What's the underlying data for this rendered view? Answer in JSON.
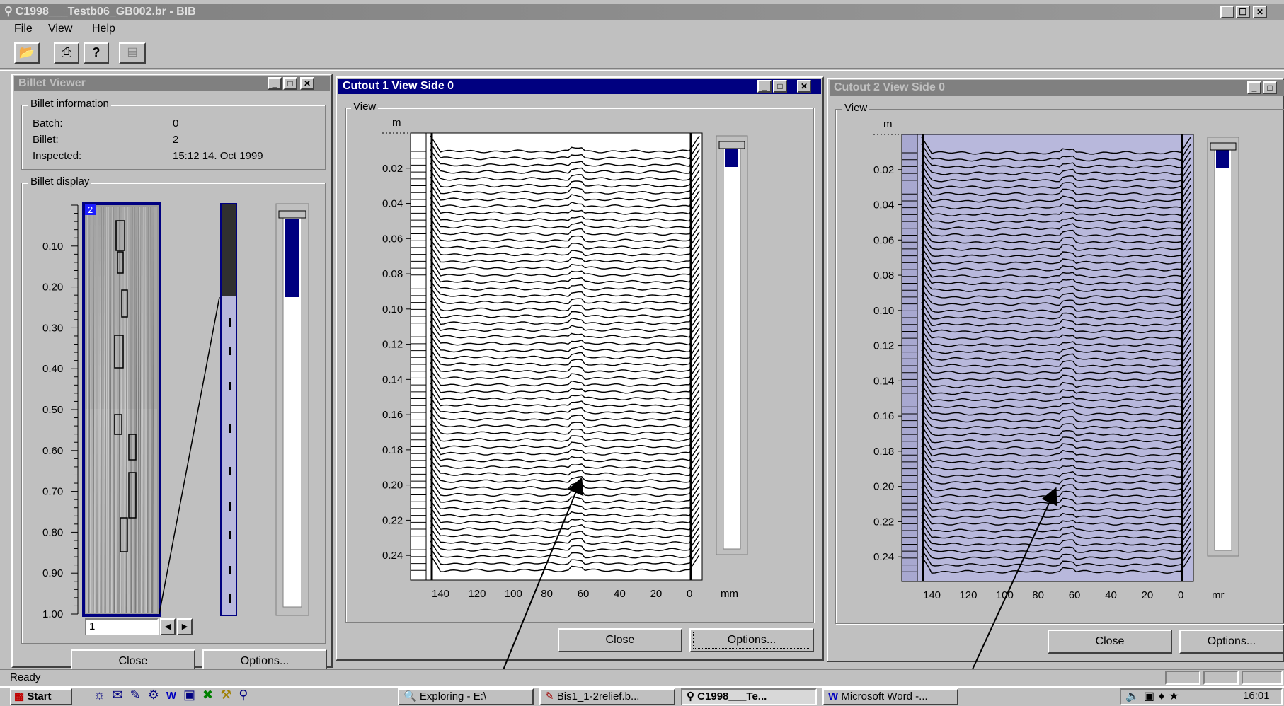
{
  "app": {
    "title": "C1998___Testb06_GB002.br - BIB",
    "menu": [
      "File",
      "View",
      "Help"
    ],
    "status": "Ready"
  },
  "billet_viewer": {
    "title": "Billet Viewer",
    "info_group": "Billet information",
    "rows": [
      {
        "label": "Batch:",
        "value": "0"
      },
      {
        "label": "Billet:",
        "value": "2"
      },
      {
        "label": "Inspected:",
        "value": "15:12  14. Oct 1999"
      }
    ],
    "display_group": "Billet display",
    "marker": "2",
    "axis": [
      "0.10",
      "0.20",
      "0.30",
      "0.40",
      "0.50",
      "0.60",
      "0.70",
      "0.80",
      "0.90",
      "1.00"
    ],
    "index_value": "1",
    "close_label": "Close",
    "options_label": "Options..."
  },
  "cutout1": {
    "title": "Cutout 1 View Side 0",
    "group": "View",
    "y_unit": "m",
    "x_unit": "mm",
    "y_ticks": [
      "0.02",
      "0.04",
      "0.06",
      "0.08",
      "0.10",
      "0.12",
      "0.14",
      "0.16",
      "0.18",
      "0.20",
      "0.22",
      "0.24"
    ],
    "x_ticks": [
      "140",
      "120",
      "100",
      "80",
      "60",
      "40",
      "20",
      "0"
    ],
    "close_label": "Close",
    "options_label": "Options..."
  },
  "cutout2": {
    "title": "Cutout 2 View Side 0",
    "group": "View",
    "y_unit": "m",
    "x_unit": "mr",
    "y_ticks": [
      "0.02",
      "0.04",
      "0.06",
      "0.08",
      "0.10",
      "0.12",
      "0.14",
      "0.16",
      "0.18",
      "0.20",
      "0.22",
      "0.24"
    ],
    "x_ticks": [
      "140",
      "120",
      "100",
      "80",
      "60",
      "40",
      "20",
      "0"
    ],
    "close_label": "Close",
    "options_label": "Options..."
  },
  "taskbar": {
    "start": "Start",
    "tasks": [
      "Exploring - E:\\",
      "Bis1_1-2relief.b...",
      "C1998___Te...",
      "Microsoft Word -..."
    ],
    "clock": "16:01"
  },
  "colors": {
    "desktop": "#c0c0c0",
    "active_title": "#000080",
    "inactive_title": "#808080",
    "relief_fill": "#b8b8dc",
    "scroll_thumb": "#000080"
  },
  "icons": [
    "open-icon",
    "print-icon",
    "help-icon",
    "document-icon"
  ]
}
